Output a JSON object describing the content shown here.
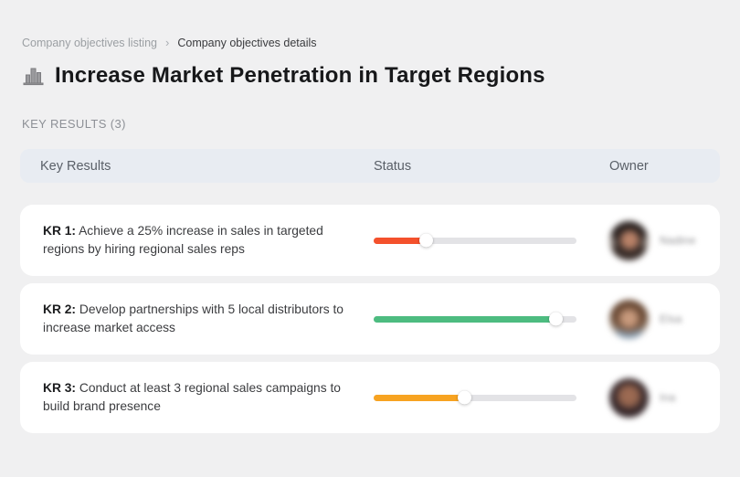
{
  "breadcrumb": {
    "separator": "›",
    "items": [
      {
        "label": "Company objectives listing"
      },
      {
        "label": "Company objectives details"
      }
    ]
  },
  "page": {
    "title": "Increase Market Penetration in Target Regions",
    "icon": "buildings-icon"
  },
  "section": {
    "label": "KEY RESULTS (3)"
  },
  "table": {
    "headers": [
      "Key Results",
      "Status",
      "Owner"
    ],
    "rows": [
      {
        "kr_label": "KR 1:",
        "text": "Achieve a 25% increase in sales in targeted regions by hiring regional sales reps",
        "progress_percent": 26,
        "progress_color": "#F4512C",
        "owner": {
          "name": "Nadine"
        }
      },
      {
        "kr_label": "KR 2:",
        "text": "Develop partnerships with 5 local distributors to increase market access",
        "progress_percent": 90,
        "progress_color": "#4DBC80",
        "owner": {
          "name": "Elsa"
        }
      },
      {
        "kr_label": "KR 3:",
        "text": "Conduct at least 3 regional sales campaigns to build brand presence",
        "progress_percent": 45,
        "progress_color": "#F7A321",
        "owner": {
          "name": "Ina"
        }
      }
    ]
  },
  "colors": {
    "page_background": "#f0f0f1",
    "card_background": "#ffffff",
    "header_background": "#e8ecf2",
    "track": "#e3e3e6",
    "progress_red": "#F4512C",
    "progress_green": "#4DBC80",
    "progress_orange": "#F7A321"
  }
}
